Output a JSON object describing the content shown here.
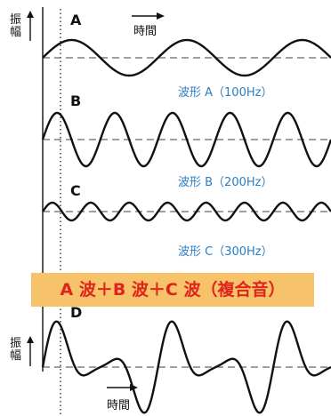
{
  "panels": [
    {
      "letter": "A",
      "caption": "波形 A（100Hz）",
      "cycles": 2.5
    },
    {
      "letter": "B",
      "caption": "波形 B（200Hz）",
      "cycles": 5
    },
    {
      "letter": "C",
      "caption": "波形 C（300Hz）",
      "cycles": 7.5
    }
  ],
  "combined": {
    "letter": "D",
    "banner": "A 波＋B 波＋C 波（複合音）"
  },
  "axis": {
    "amplitude_label": "振幅",
    "time_label": "時間"
  },
  "colors": {
    "caption": "#2a7ec3",
    "banner_bg": "#f7c36a",
    "banner_text": "#e0231d",
    "line": "#111111",
    "dashed": "#666666"
  }
}
